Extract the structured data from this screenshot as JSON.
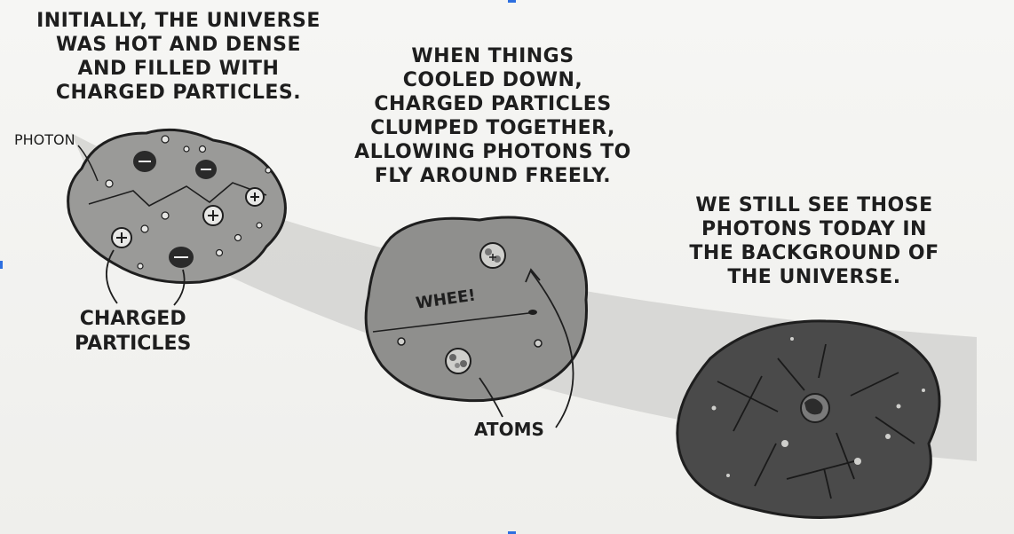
{
  "captions": {
    "initial": [
      "INITIALLY, THE UNIVERSE",
      "WAS HOT AND DENSE",
      "AND FILLED WITH",
      "CHARGED PARTICLES."
    ],
    "cooled": [
      "WHEN THINGS",
      "COOLED DOWN,",
      "CHARGED PARTICLES",
      "CLUMPED TOGETHER,",
      "ALLOWING PHOTONS TO",
      "FLY AROUND FREELY."
    ],
    "today": [
      "WE STILL SEE THOSE",
      "PHOTONS TODAY IN",
      "THE BACKGROUND OF",
      "THE UNIVERSE."
    ]
  },
  "labels": {
    "photon": "PHOTON",
    "charged_particles": [
      "CHARGED",
      "PARTICLES"
    ],
    "whee": "WHEE!",
    "atoms": "ATOMS"
  },
  "icons": {
    "positive": "plus-particle-icon",
    "negative": "minus-particle-icon",
    "atom": "atom-icon",
    "earth": "earth-icon"
  },
  "colors": {
    "blob_light": "#9a9a98",
    "blob_mid": "#8a8a88",
    "blob_dark": "#4a4a4a",
    "ink": "#1e1e1e",
    "beam": "#cfcfcc"
  }
}
